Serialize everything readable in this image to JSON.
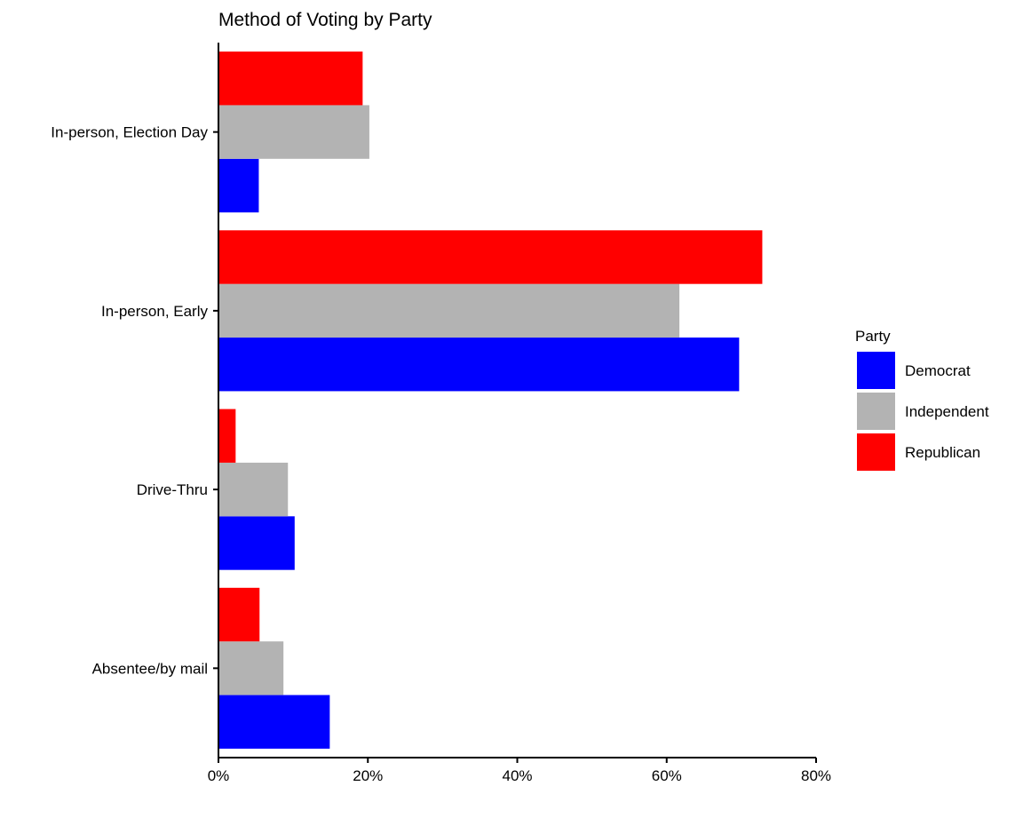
{
  "chart_data": {
    "type": "bar",
    "orientation": "horizontal",
    "title": "Method of Voting by Party",
    "xlabel": "",
    "ylabel": "",
    "categories": [
      "In-person, Election Day",
      "In-person, Early",
      "Drive-Thru",
      "Absentee/by mail"
    ],
    "series": [
      {
        "name": "Democrat",
        "color": "#0000ff",
        "values": [
          5.4,
          69.7,
          10.2,
          14.9
        ]
      },
      {
        "name": "Independent",
        "color": "#b3b3b3",
        "values": [
          20.2,
          61.7,
          9.3,
          8.7
        ]
      },
      {
        "name": "Republican",
        "color": "#ff0000",
        "values": [
          19.3,
          72.8,
          2.3,
          5.5
        ]
      }
    ],
    "xlim": [
      0,
      80
    ],
    "x_ticks": [
      0,
      20,
      40,
      60,
      80
    ],
    "x_tick_labels": [
      "0%",
      "20%",
      "40%",
      "60%",
      "80%"
    ],
    "grid": false,
    "legend": {
      "title": "Party",
      "position": "right",
      "items": [
        "Democrat",
        "Independent",
        "Republican"
      ]
    }
  }
}
